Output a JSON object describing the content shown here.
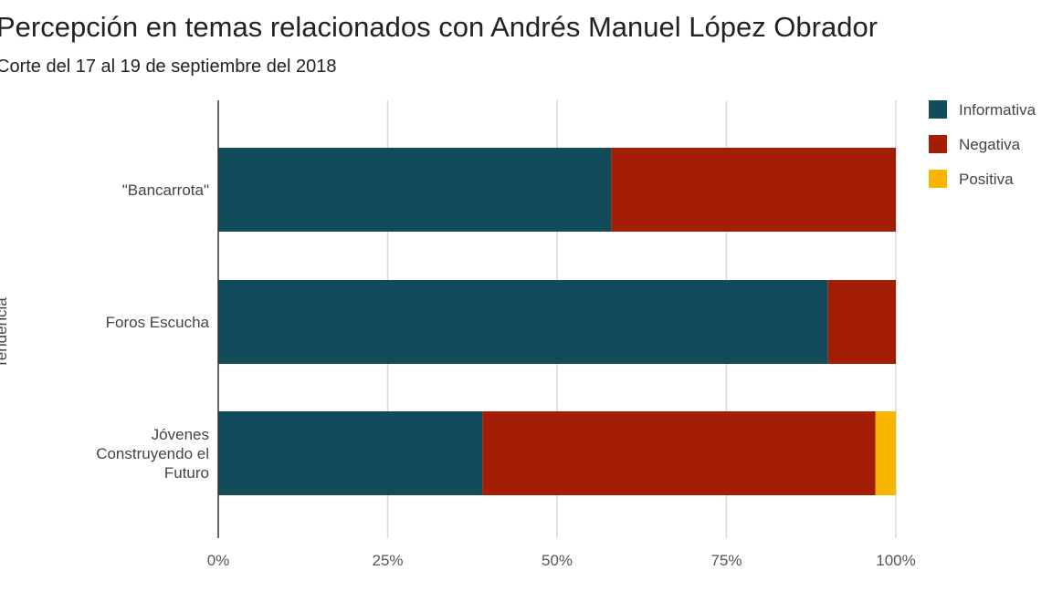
{
  "chart_data": {
    "type": "bar",
    "orientation": "horizontal",
    "stacked": "percent",
    "title": "Percepción en temas relacionados con Andrés Manuel López Obrador",
    "subtitle": "Corte del 17 al 19 de septiembre del 2018",
    "ylabel": "Tendencia",
    "xlabel": "",
    "xlim": [
      0,
      100
    ],
    "x_ticks": [
      "0%",
      "25%",
      "50%",
      "75%",
      "100%"
    ],
    "categories": [
      "\"Bancarrota\"",
      "Foros Escucha",
      "Jóvenes Construyendo el Futuro"
    ],
    "series": [
      {
        "name": "Informativa",
        "color": "#124b5a",
        "values": [
          58,
          90,
          39
        ]
      },
      {
        "name": "Negativa",
        "color": "#a31e05",
        "values": [
          42,
          10,
          58
        ]
      },
      {
        "name": "Positiva",
        "color": "#f7b500",
        "values": [
          0,
          0,
          3
        ]
      }
    ],
    "legend_position": "top-right",
    "grid": true
  }
}
